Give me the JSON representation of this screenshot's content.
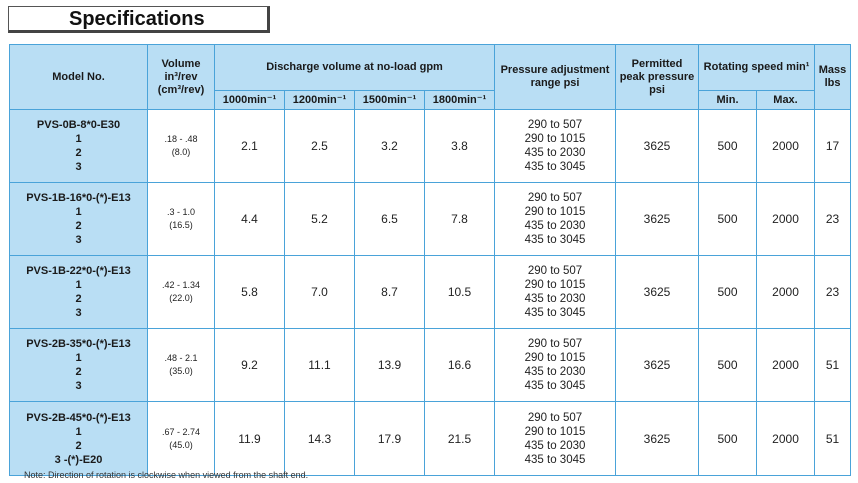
{
  "title": "Specifications",
  "headers": {
    "model": "Model No.",
    "volume_line1": "Volume",
    "volume_line2": "in³/rev",
    "volume_line3": "(cm³/rev)",
    "discharge": "Discharge volume at no-load gpm",
    "rpm": [
      "1000min⁻¹",
      "1200min⁻¹",
      "1500min⁻¹",
      "1800min⁻¹"
    ],
    "pressure_line1": "Pressure adjustment",
    "pressure_line2": "range psi",
    "permitted_line1": "Permitted",
    "permitted_line2": "peak pressure",
    "permitted_line3": "psi",
    "speed": "Rotating speed min¹",
    "speed_min": "Min.",
    "speed_max": "Max.",
    "mass_line1": "Mass",
    "mass_line2": "lbs"
  },
  "rows": [
    {
      "model": [
        "PVS-0B-8*0-E30",
        "1",
        "2",
        "3"
      ],
      "vol_in": ".18 - .48",
      "vol_cm": "(8.0)",
      "discharge": [
        "2.1",
        "2.5",
        "3.2",
        "3.8"
      ],
      "pressure": [
        "290 to 507",
        "290 to 1015",
        "435 to 2030",
        "435 to 3045"
      ],
      "peak": "3625",
      "min": "500",
      "max": "2000",
      "mass": "17"
    },
    {
      "model": [
        "PVS-1B-16*0-(*)-E13",
        "1",
        "2",
        "3"
      ],
      "vol_in": ".3 - 1.0",
      "vol_cm": "(16.5)",
      "discharge": [
        "4.4",
        "5.2",
        "6.5",
        "7.8"
      ],
      "pressure": [
        "290 to 507",
        "290 to 1015",
        "435 to 2030",
        "435 to 3045"
      ],
      "peak": "3625",
      "min": "500",
      "max": "2000",
      "mass": "23"
    },
    {
      "model": [
        "PVS-1B-22*0-(*)-E13",
        "1",
        "2",
        "3"
      ],
      "vol_in": ".42 - 1.34",
      "vol_cm": "(22.0)",
      "discharge": [
        "5.8",
        "7.0",
        "8.7",
        "10.5"
      ],
      "pressure": [
        "290 to 507",
        "290 to 1015",
        "435 to 2030",
        "435 to 3045"
      ],
      "peak": "3625",
      "min": "500",
      "max": "2000",
      "mass": "23"
    },
    {
      "model": [
        "PVS-2B-35*0-(*)-E13",
        "1",
        "2",
        "3"
      ],
      "vol_in": ".48 - 2.1",
      "vol_cm": "(35.0)",
      "discharge": [
        "9.2",
        "11.1",
        "13.9",
        "16.6"
      ],
      "pressure": [
        "290 to 507",
        "290 to 1015",
        "435 to 2030",
        "435 to 3045"
      ],
      "peak": "3625",
      "min": "500",
      "max": "2000",
      "mass": "51"
    },
    {
      "model": [
        "PVS-2B-45*0-(*)-E13",
        "1",
        "2",
        "3 -(*)-E20"
      ],
      "vol_in": ".67 - 2.74",
      "vol_cm": "(45.0)",
      "discharge": [
        "11.9",
        "14.3",
        "17.9",
        "21.5"
      ],
      "pressure": [
        "290 to 507",
        "290 to 1015",
        "435 to 2030",
        "435 to 3045"
      ],
      "peak": "3625",
      "min": "500",
      "max": "2000",
      "mass": "51"
    }
  ],
  "note": "Note:  Direction of rotation is clockwise when viewed from the shaft end."
}
